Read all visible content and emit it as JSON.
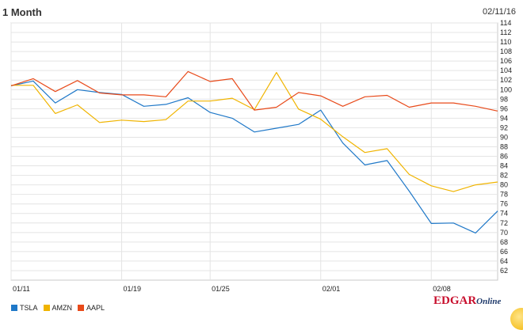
{
  "header": {
    "range_label": "1 Month",
    "end_date": "02/11/16"
  },
  "chart_data": {
    "type": "line",
    "title": "",
    "x": [
      "01/11",
      "01/12",
      "01/13",
      "01/14",
      "01/15",
      "01/19",
      "01/20",
      "01/21",
      "01/22",
      "01/25",
      "01/26",
      "01/27",
      "01/28",
      "01/29",
      "02/01",
      "02/02",
      "02/03",
      "02/04",
      "02/05",
      "02/08",
      "02/09",
      "02/10",
      "02/11"
    ],
    "x_tick_labels": [
      {
        "label": "01/11",
        "at": "01/11"
      },
      {
        "label": "01/19",
        "at": "01/19"
      },
      {
        "label": "01/25",
        "at": "01/25"
      },
      {
        "label": "02/01",
        "at": "02/01"
      },
      {
        "label": "02/08",
        "at": "02/08"
      }
    ],
    "ylim": [
      60,
      114
    ],
    "yticks": [
      62,
      64,
      66,
      68,
      70,
      72,
      74,
      76,
      78,
      80,
      82,
      84,
      86,
      88,
      90,
      92,
      94,
      96,
      98,
      100,
      102,
      104,
      106,
      108,
      110,
      112,
      114
    ],
    "y_axis_side": "right",
    "grid": true,
    "legend_position": "bottom-left",
    "series": [
      {
        "name": "TSLA",
        "color": "#1f78c8",
        "values": [
          100.8,
          101.8,
          97.2,
          100,
          99.4,
          99.0,
          96.5,
          96.9,
          98.3,
          95.2,
          94.0,
          91.1,
          91.9,
          92.7,
          95.7,
          88.8,
          84.2,
          85.1,
          78.7,
          71.9,
          72.0,
          69.9,
          74.5
        ]
      },
      {
        "name": "AMZN",
        "color": "#f0b400",
        "values": [
          100.9,
          100.9,
          95.0,
          96.8,
          93.1,
          93.6,
          93.3,
          93.7,
          97.6,
          97.6,
          98.2,
          95.8,
          103.6,
          95.9,
          93.8,
          90.1,
          86.8,
          87.6,
          82.2,
          79.8,
          78.6,
          80.0,
          80.6
        ]
      },
      {
        "name": "AAPL",
        "color": "#e84a1a",
        "values": [
          100.8,
          102.3,
          99.6,
          101.9,
          99.3,
          98.9,
          98.9,
          98.5,
          103.8,
          101.7,
          102.3,
          95.7,
          96.3,
          99.4,
          98.7,
          96.5,
          98.5,
          98.8,
          96.3,
          97.2,
          97.2,
          96.5,
          95.5
        ]
      }
    ]
  },
  "branding": {
    "logo_main": "EDGAR",
    "logo_sub": "Online"
  }
}
